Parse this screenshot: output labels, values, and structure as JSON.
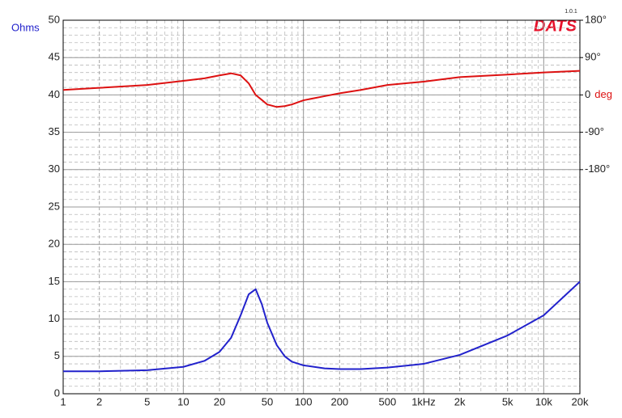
{
  "chart_data": {
    "type": "line",
    "logo": "DATS",
    "version": "1.0.1",
    "ylabel": "Ohms",
    "y2label": "deg",
    "x": [
      1,
      2,
      5,
      10,
      15,
      20,
      25,
      30,
      35,
      40,
      45,
      50,
      60,
      70,
      80,
      100,
      150,
      200,
      300,
      500,
      1000,
      2000,
      5000,
      10000,
      20000
    ],
    "series": [
      {
        "name": "Ohms",
        "color": "#2222cc",
        "values": [
          3.0,
          3.0,
          3.15,
          3.6,
          4.4,
          5.6,
          7.5,
          10.5,
          13.3,
          14.0,
          12.0,
          9.5,
          6.5,
          5.0,
          4.3,
          3.8,
          3.4,
          3.3,
          3.3,
          3.5,
          4.0,
          5.2,
          7.8,
          10.5,
          15.0
        ]
      },
      {
        "name": "deg",
        "color": "#dd1111",
        "axis": "y2",
        "values": [
          12,
          17,
          24,
          34,
          40,
          47,
          52,
          47,
          28,
          0,
          -12,
          -23,
          -29,
          -27,
          -23,
          -13,
          -3,
          4,
          12,
          24,
          32,
          43,
          49,
          54,
          58
        ]
      }
    ],
    "xscale": "log",
    "xlim": [
      1,
      20000
    ],
    "xticks": [
      1,
      2,
      5,
      10,
      20,
      50,
      100,
      200,
      500,
      {
        "value": 1000,
        "label": "1kHz"
      },
      {
        "value": 2000,
        "label": "2k"
      },
      {
        "value": 5000,
        "label": "5k"
      },
      {
        "value": 10000,
        "label": "10k"
      },
      {
        "value": 20000,
        "label": "20k"
      }
    ],
    "ylim": [
      0,
      50
    ],
    "yticks": [
      0,
      5,
      10,
      15,
      20,
      25,
      30,
      35,
      40,
      45,
      50
    ],
    "y2lim": [
      -720,
      180
    ],
    "y2ticks": [
      {
        "value": 180,
        "label": "180°"
      },
      {
        "value": 90,
        "label": "90°"
      },
      0,
      {
        "value": -90,
        "label": "-90°"
      },
      {
        "value": -180,
        "label": "-180°"
      }
    ],
    "grid": true
  }
}
